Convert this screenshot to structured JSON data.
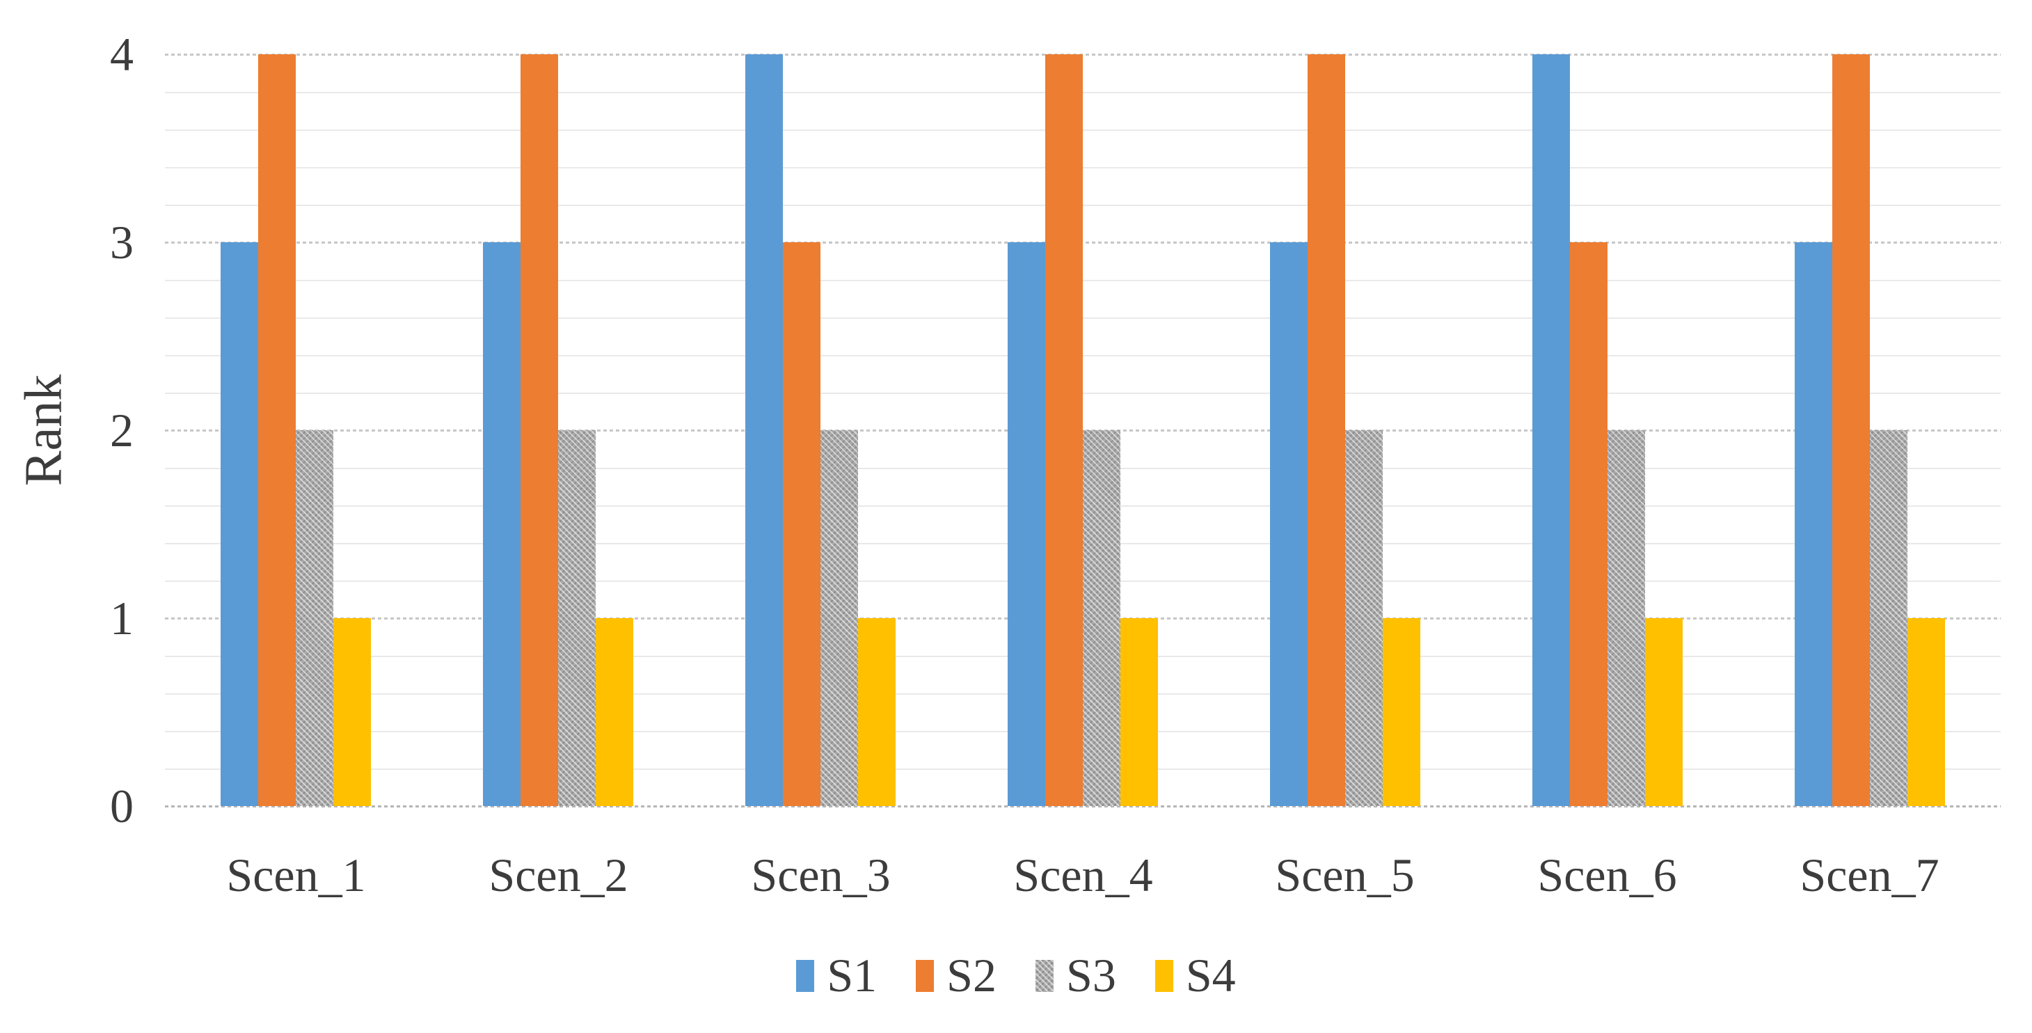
{
  "chart_data": {
    "type": "bar",
    "title": "",
    "xlabel": "",
    "ylabel": "Rank",
    "ylim": [
      0,
      4
    ],
    "yticks": [
      0,
      1,
      2,
      3,
      4
    ],
    "y_minor_step": 0.2,
    "grid": "horizontal: dashed major lines at integers, light solid minor lines every 0.2",
    "legend_position": "bottom-center",
    "categories": [
      "Scen_1",
      "Scen_2",
      "Scen_3",
      "Scen_4",
      "Scen_5",
      "Scen_6",
      "Scen_7"
    ],
    "series": [
      {
        "name": "S1",
        "color": "#5B9BD5",
        "pattern": "solid",
        "values": [
          3,
          3,
          4,
          3,
          3,
          4,
          3
        ]
      },
      {
        "name": "S2",
        "color": "#ED7D31",
        "pattern": "solid",
        "values": [
          4,
          4,
          3,
          4,
          4,
          3,
          4
        ]
      },
      {
        "name": "S3",
        "color": "#A6A6A6",
        "pattern": "textured",
        "values": [
          2,
          2,
          2,
          2,
          2,
          2,
          2
        ]
      },
      {
        "name": "S4",
        "color": "#FFC000",
        "pattern": "solid",
        "values": [
          1,
          1,
          1,
          1,
          1,
          1,
          1
        ]
      }
    ]
  },
  "colors": {
    "background": "#FFFFFF",
    "axis_text": "#3C3C3C",
    "major_gridline": "#C7C7C7",
    "minor_gridline": "#E9E9E9",
    "axis_line": "#B5B5B5"
  }
}
